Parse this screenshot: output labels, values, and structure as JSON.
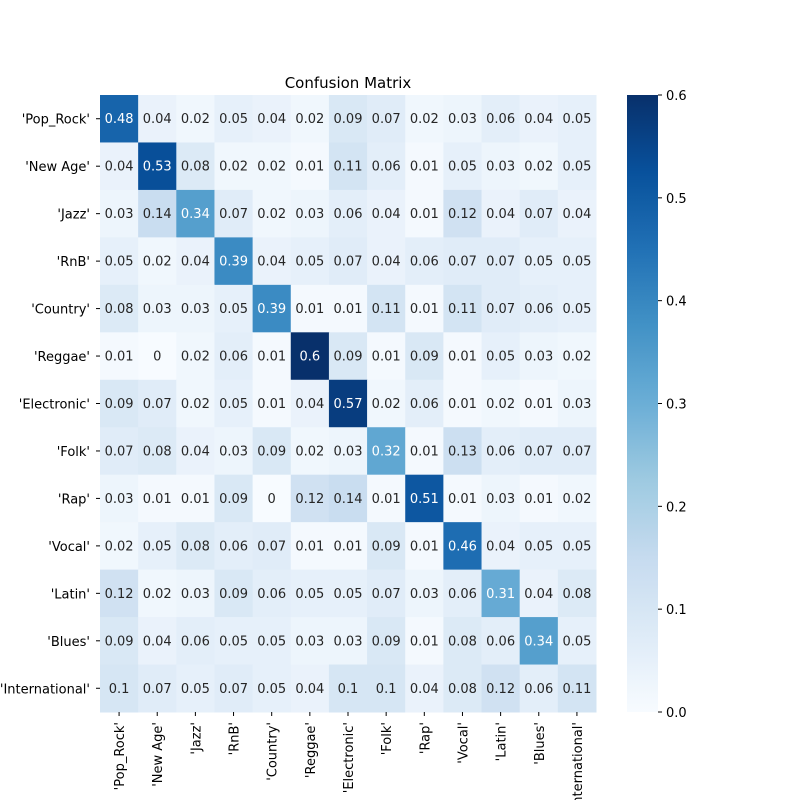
{
  "chart_data": {
    "type": "heatmap",
    "title": "Confusion Matrix",
    "xlabel": "",
    "ylabel": "",
    "row_labels": [
      "'Pop_Rock'",
      "'New Age'",
      "'Jazz'",
      "'RnB'",
      "'Country'",
      "'Reggae'",
      "'Electronic'",
      "'Folk'",
      "'Rap'",
      "'Vocal'",
      "'Latin'",
      "'Blues'",
      "'International'"
    ],
    "col_labels": [
      "'Pop_Rock'",
      "'New Age'",
      "'Jazz'",
      "'RnB'",
      "'Country'",
      "'Reggae'",
      "'Electronic'",
      "'Folk'",
      "'Rap'",
      "'Vocal'",
      "'Latin'",
      "'Blues'",
      "'International'"
    ],
    "matrix": [
      [
        0.48,
        0.04,
        0.02,
        0.05,
        0.04,
        0.02,
        0.09,
        0.07,
        0.02,
        0.03,
        0.06,
        0.04,
        0.05
      ],
      [
        0.04,
        0.53,
        0.08,
        0.02,
        0.02,
        0.01,
        0.11,
        0.06,
        0.01,
        0.05,
        0.03,
        0.02,
        0.05
      ],
      [
        0.03,
        0.14,
        0.34,
        0.07,
        0.02,
        0.03,
        0.06,
        0.04,
        0.01,
        0.12,
        0.04,
        0.07,
        0.04
      ],
      [
        0.05,
        0.02,
        0.04,
        0.39,
        0.04,
        0.05,
        0.07,
        0.04,
        0.06,
        0.07,
        0.07,
        0.05,
        0.05
      ],
      [
        0.08,
        0.03,
        0.03,
        0.05,
        0.39,
        0.01,
        0.01,
        0.11,
        0.01,
        0.11,
        0.07,
        0.06,
        0.05
      ],
      [
        0.01,
        0,
        0.02,
        0.06,
        0.01,
        0.6,
        0.09,
        0.01,
        0.09,
        0.01,
        0.05,
        0.03,
        0.02
      ],
      [
        0.09,
        0.07,
        0.02,
        0.05,
        0.01,
        0.04,
        0.57,
        0.02,
        0.06,
        0.01,
        0.02,
        0.01,
        0.03
      ],
      [
        0.07,
        0.08,
        0.04,
        0.03,
        0.09,
        0.02,
        0.03,
        0.32,
        0.01,
        0.13,
        0.06,
        0.07,
        0.07
      ],
      [
        0.03,
        0.01,
        0.01,
        0.09,
        0,
        0.12,
        0.14,
        0.01,
        0.51,
        0.01,
        0.03,
        0.01,
        0.02
      ],
      [
        0.02,
        0.05,
        0.08,
        0.06,
        0.07,
        0.01,
        0.01,
        0.09,
        0.01,
        0.46,
        0.04,
        0.05,
        0.05
      ],
      [
        0.12,
        0.02,
        0.03,
        0.09,
        0.06,
        0.05,
        0.05,
        0.07,
        0.03,
        0.06,
        0.31,
        0.04,
        0.08
      ],
      [
        0.09,
        0.04,
        0.06,
        0.05,
        0.05,
        0.03,
        0.03,
        0.09,
        0.01,
        0.08,
        0.06,
        0.34,
        0.05
      ],
      [
        0.1,
        0.07,
        0.05,
        0.07,
        0.05,
        0.04,
        0.1,
        0.1,
        0.04,
        0.08,
        0.12,
        0.06,
        0.11
      ]
    ],
    "vmin": 0.0,
    "vmax": 0.6,
    "colormap": "Blues",
    "colorbar_ticks": [
      "0.0",
      "0.1",
      "0.2",
      "0.3",
      "0.4",
      "0.5",
      "0.6"
    ],
    "colorbar_tick_values": [
      0.0,
      0.1,
      0.2,
      0.3,
      0.4,
      0.5,
      0.6
    ]
  }
}
